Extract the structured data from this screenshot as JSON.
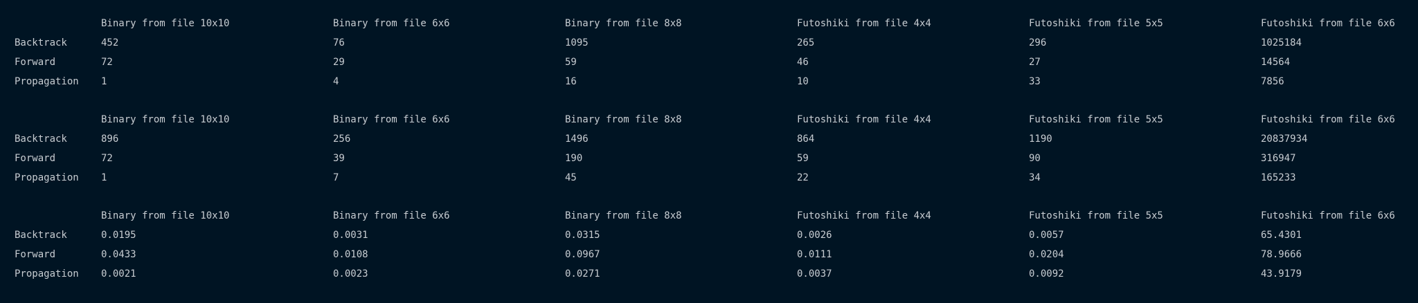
{
  "columns": [
    "Binary from file 10x10",
    "Binary from file 6x6",
    "Binary from file 8x8",
    "Futoshiki from file 4x4",
    "Futoshiki from file 5x5",
    "Futoshiki from file 6x6"
  ],
  "tables": [
    {
      "rows": [
        {
          "label": "Backtrack",
          "values": [
            "452",
            "76",
            "1095",
            "265",
            "296",
            "1025184"
          ]
        },
        {
          "label": "Forward",
          "values": [
            "72",
            "29",
            "59",
            "46",
            "27",
            "14564"
          ]
        },
        {
          "label": "Propagation",
          "values": [
            "1",
            "4",
            "16",
            "10",
            "33",
            "7856"
          ]
        }
      ]
    },
    {
      "rows": [
        {
          "label": "Backtrack",
          "values": [
            "896",
            "256",
            "1496",
            "864",
            "1190",
            "20837934"
          ]
        },
        {
          "label": "Forward",
          "values": [
            "72",
            "39",
            "190",
            "59",
            "90",
            "316947"
          ]
        },
        {
          "label": "Propagation",
          "values": [
            "1",
            "7",
            "45",
            "22",
            "34",
            "165233"
          ]
        }
      ]
    },
    {
      "rows": [
        {
          "label": "Backtrack",
          "values": [
            "0.0195",
            "0.0031",
            "0.0315",
            "0.0026",
            "0.0057",
            "65.4301"
          ]
        },
        {
          "label": "Forward",
          "values": [
            "0.0433",
            "0.0108",
            "0.0967",
            "0.0111",
            "0.0204",
            "78.9666"
          ]
        },
        {
          "label": "Propagation",
          "values": [
            "0.0021",
            "0.0023",
            "0.0271",
            "0.0037",
            "0.0092",
            "43.9179"
          ]
        }
      ]
    }
  ]
}
